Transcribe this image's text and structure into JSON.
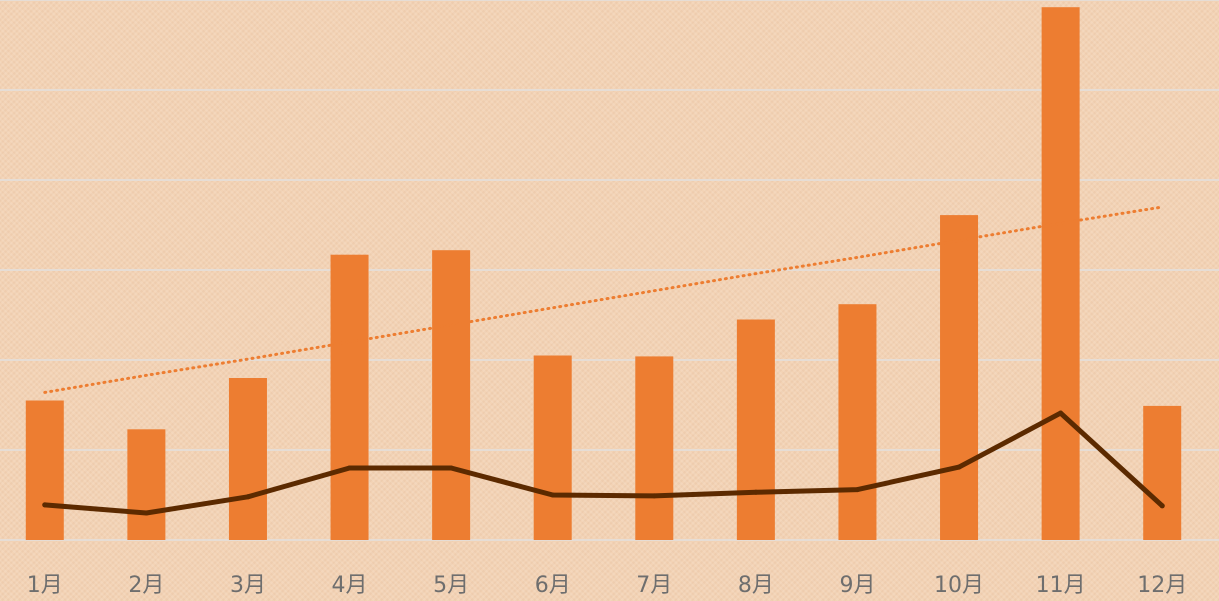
{
  "chart_data": {
    "type": "bar",
    "categories": [
      "1月",
      "2月",
      "3月",
      "4月",
      "5月",
      "6月",
      "7月",
      "8月",
      "9月",
      "10月",
      "11月",
      "12月"
    ],
    "series": [
      {
        "type": "bar",
        "values": [
          15.5,
          12.3,
          18.0,
          31.7,
          32.2,
          20.5,
          20.4,
          24.5,
          26.2,
          36.1,
          59.2,
          14.9
        ]
      },
      {
        "type": "line",
        "values": [
          3.9,
          3.0,
          4.8,
          8.0,
          8.0,
          5.0,
          4.9,
          5.3,
          5.6,
          8.1,
          14.1,
          3.8
        ]
      },
      {
        "type": "trendline",
        "style": "dotted",
        "values": [
          16.4,
          18.3,
          20.1,
          22.0,
          23.9,
          25.8,
          27.7,
          29.6,
          31.4,
          33.3,
          35.2,
          37.0
        ]
      }
    ],
    "ylim": [
      0,
      60
    ],
    "grid": true,
    "legend": "none",
    "colors": {
      "bar": "#ed7d31",
      "line": "#5c2a00",
      "trend": "#ed7d31",
      "grid": "#e6ddd5",
      "ticks": "#6e6e6e"
    }
  }
}
